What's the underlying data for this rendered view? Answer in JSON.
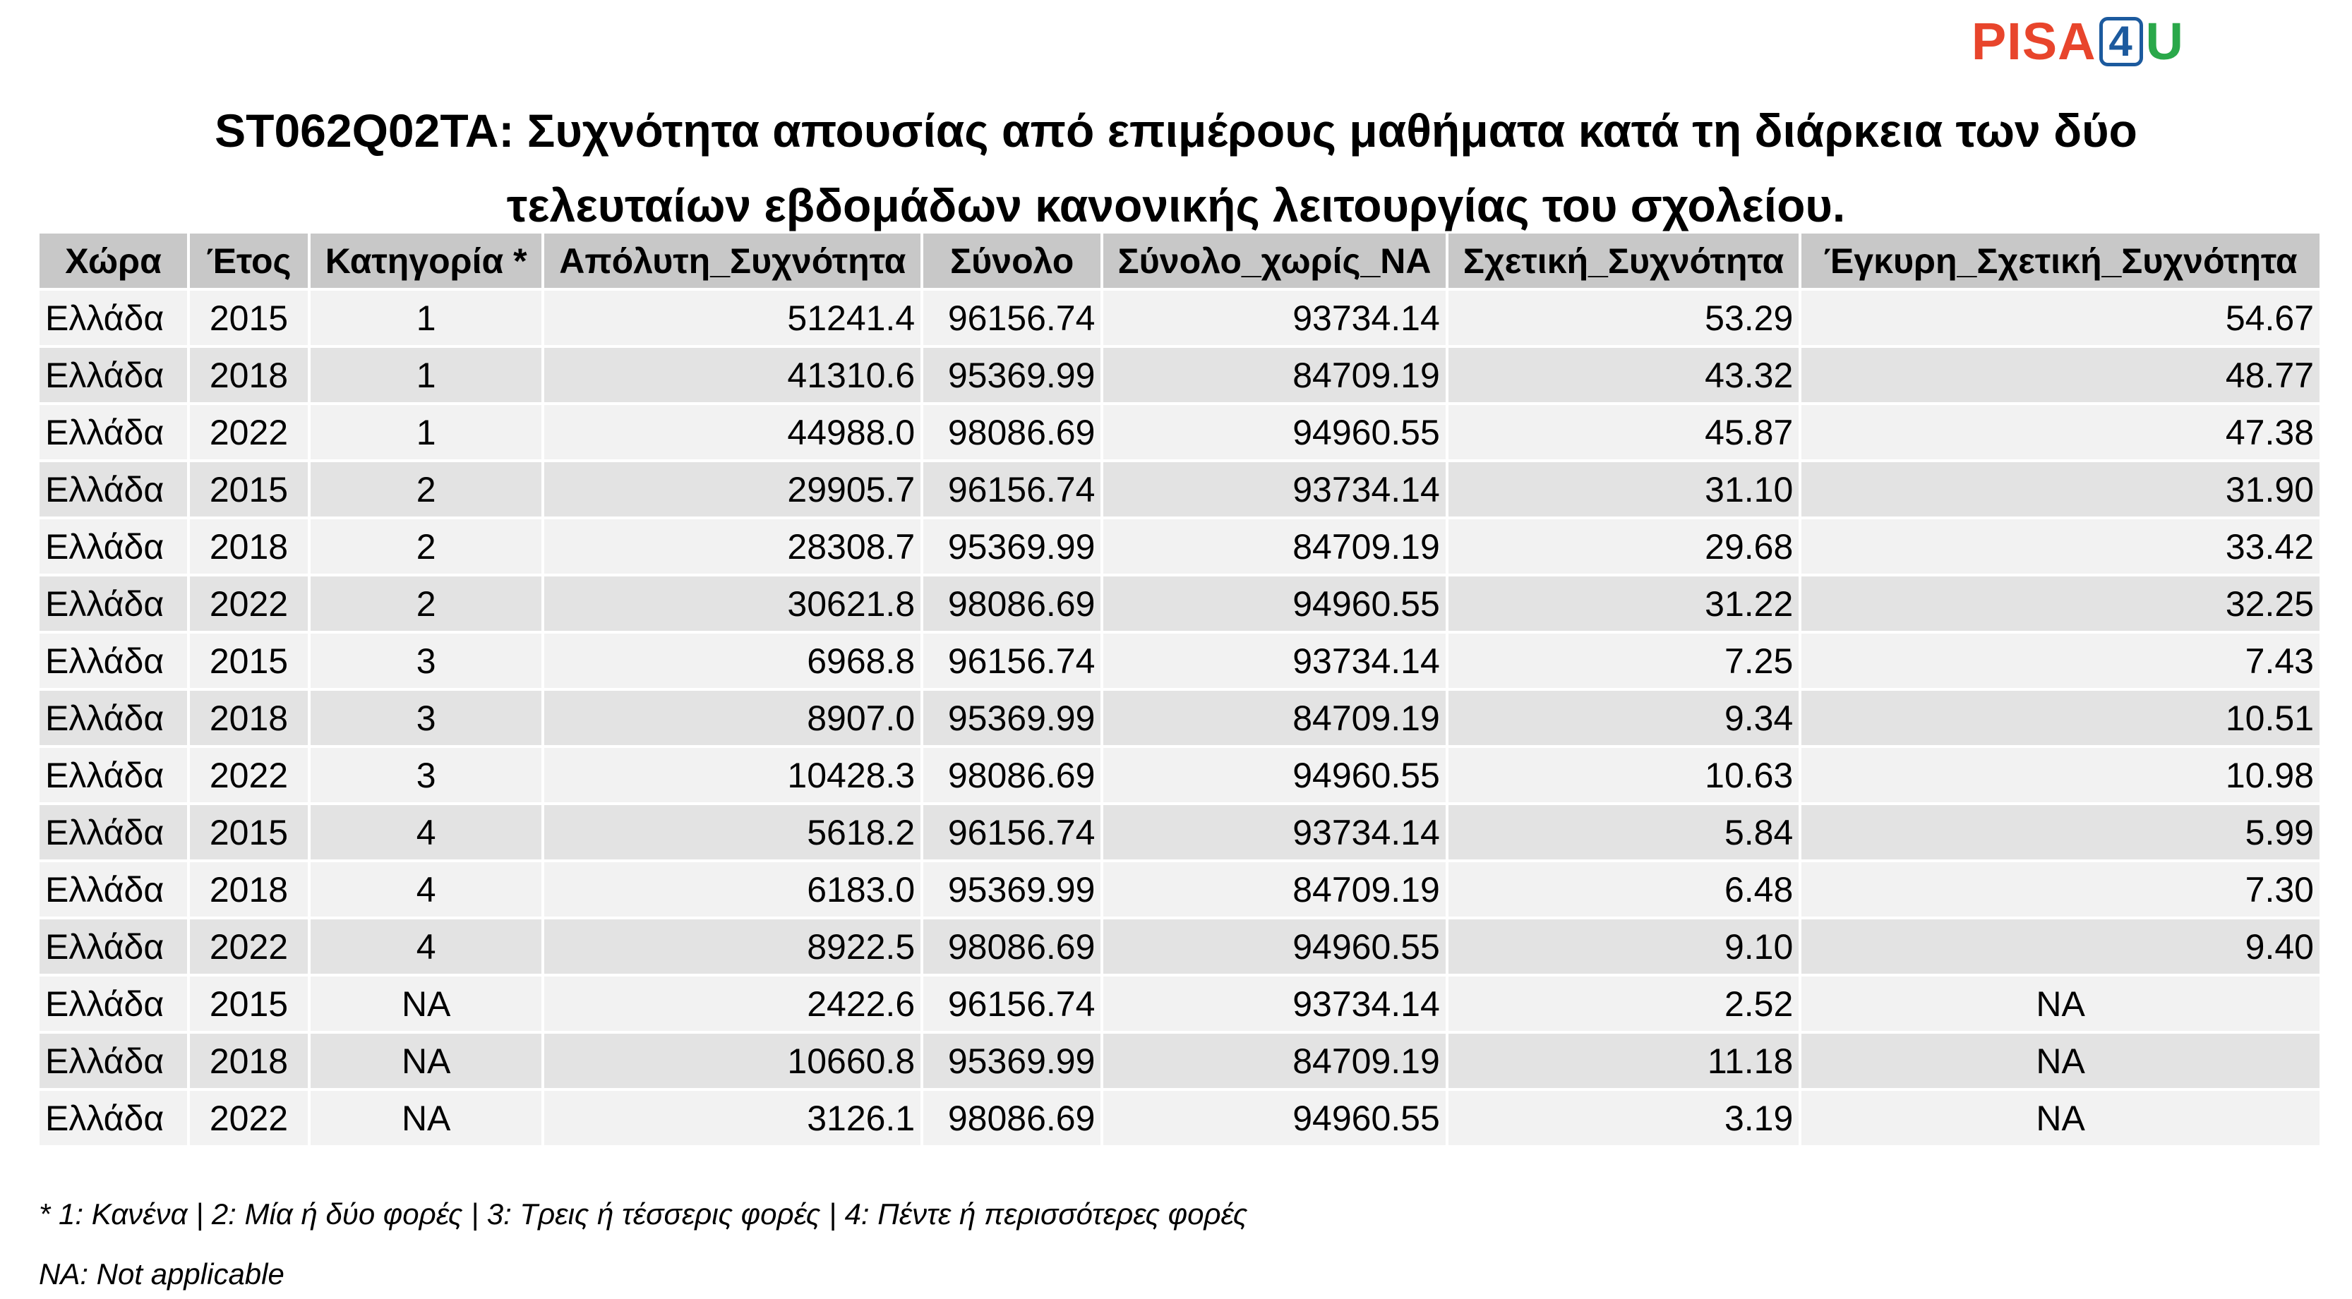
{
  "logo": {
    "part1": "PISA",
    "part2": "4",
    "part3": "U"
  },
  "title": {
    "line1": "ST062Q02TA: Συχνότητα απουσίας από επιμέρους μαθήματα κατά τη διάρκεια των δύο",
    "line2": "τελευταίων εβδομάδων κανονικής λειτουργίας του σχολείου."
  },
  "table": {
    "headers": [
      "Χώρα",
      "Έτος",
      "Κατηγορία *",
      "Απόλυτη_Συχνότητα",
      "Σύνολο",
      "Σύνολο_χωρίς_NA",
      "Σχετική_Συχνότητα",
      "Έγκυρη_Σχετική_Συχνότητα"
    ],
    "rows": [
      [
        "Ελλάδα",
        "2015",
        "1",
        "51241.4",
        "96156.74",
        "93734.14",
        "53.29",
        "54.67"
      ],
      [
        "Ελλάδα",
        "2018",
        "1",
        "41310.6",
        "95369.99",
        "84709.19",
        "43.32",
        "48.77"
      ],
      [
        "Ελλάδα",
        "2022",
        "1",
        "44988.0",
        "98086.69",
        "94960.55",
        "45.87",
        "47.38"
      ],
      [
        "Ελλάδα",
        "2015",
        "2",
        "29905.7",
        "96156.74",
        "93734.14",
        "31.10",
        "31.90"
      ],
      [
        "Ελλάδα",
        "2018",
        "2",
        "28308.7",
        "95369.99",
        "84709.19",
        "29.68",
        "33.42"
      ],
      [
        "Ελλάδα",
        "2022",
        "2",
        "30621.8",
        "98086.69",
        "94960.55",
        "31.22",
        "32.25"
      ],
      [
        "Ελλάδα",
        "2015",
        "3",
        "6968.8",
        "96156.74",
        "93734.14",
        "7.25",
        "7.43"
      ],
      [
        "Ελλάδα",
        "2018",
        "3",
        "8907.0",
        "95369.99",
        "84709.19",
        "9.34",
        "10.51"
      ],
      [
        "Ελλάδα",
        "2022",
        "3",
        "10428.3",
        "98086.69",
        "94960.55",
        "10.63",
        "10.98"
      ],
      [
        "Ελλάδα",
        "2015",
        "4",
        "5618.2",
        "96156.74",
        "93734.14",
        "5.84",
        "5.99"
      ],
      [
        "Ελλάδα",
        "2018",
        "4",
        "6183.0",
        "95369.99",
        "84709.19",
        "6.48",
        "7.30"
      ],
      [
        "Ελλάδα",
        "2022",
        "4",
        "8922.5",
        "98086.69",
        "94960.55",
        "9.10",
        "9.40"
      ],
      [
        "Ελλάδα",
        "2015",
        "NA",
        "2422.6",
        "96156.74",
        "93734.14",
        "2.52",
        "NA"
      ],
      [
        "Ελλάδα",
        "2018",
        "NA",
        "10660.8",
        "95369.99",
        "84709.19",
        "11.18",
        "NA"
      ],
      [
        "Ελλάδα",
        "2022",
        "NA",
        "3126.1",
        "98086.69",
        "94960.55",
        "3.19",
        "NA"
      ]
    ]
  },
  "footnotes": {
    "categories": "* 1: Κανένα | 2: Μία ή δύο φορές | 3: Τρεις ή τέσσερις φορές | 4: Πέντε ή περισσότερες φορές",
    "na": "NA: Not applicable"
  },
  "colors": {
    "logo_pisa": "#e8452c",
    "logo_four": "#1c5a9e",
    "logo_u": "#2aa84a",
    "header_bg": "#c8c8c8",
    "row_light": "#f2f2f2",
    "row_dark": "#e3e3e3"
  }
}
